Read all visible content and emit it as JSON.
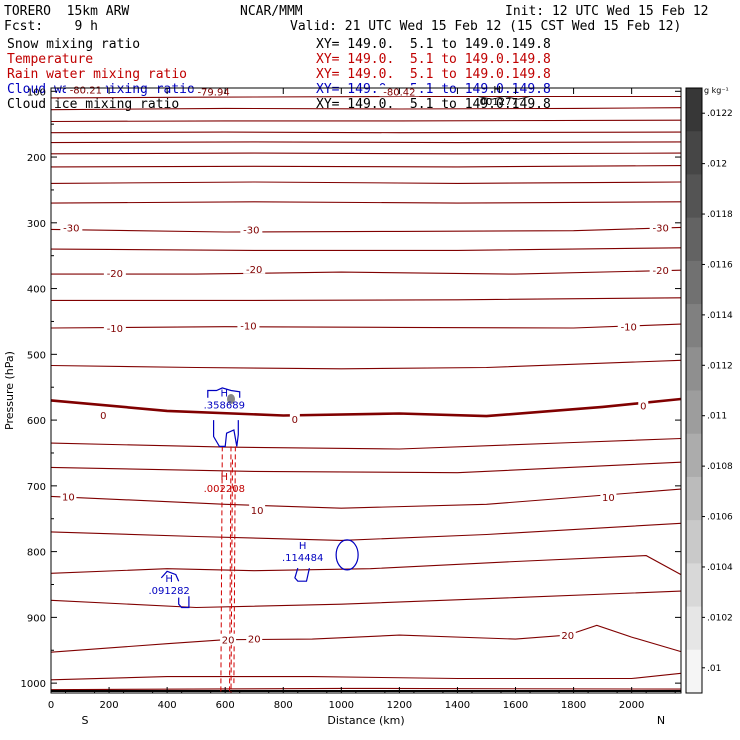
{
  "header": {
    "model": "TORERO  15km ARW",
    "center": "NCAR/MMM",
    "init": "Init: 12 UTC Wed 15 Feb 12",
    "fcst": "Fcst:    9 h",
    "valid": "Valid: 21 UTC Wed 15 Feb 12 (15 CST Wed 15 Feb 12)",
    "fields": [
      {
        "name": "Snow mixing ratio",
        "xy": "XY= 149.0.  5.1 to 149.0.149.8",
        "color": "#000000"
      },
      {
        "name": "Temperature",
        "xy": "XY= 149.0.  5.1 to 149.0.149.8",
        "color": "#c00000"
      },
      {
        "name": "Rain water mixing ratio",
        "xy": "XY= 149.0.  5.1 to 149.0.149.8",
        "color": "#c00000"
      },
      {
        "name": "Cloud water mixing ratio",
        "xy": "XY= 149.0.  5.1 to 149.0.149.8",
        "color": "#0000c0"
      },
      {
        "name": "Cloud ice mixing ratio",
        "xy": "XY= 149.0.  5.1 to 149.0.149.8",
        "color": "#000000"
      }
    ]
  },
  "chart_data": {
    "type": "contour",
    "xlabel": "Distance (km)",
    "ylabel": "Pressure (hPa)",
    "xlim": [
      0,
      2170
    ],
    "ylim": [
      1015,
      95
    ],
    "xticks": [
      0,
      200,
      400,
      600,
      800,
      1000,
      1200,
      1400,
      1600,
      1800,
      2000
    ],
    "yticks": [
      100,
      200,
      300,
      400,
      500,
      600,
      700,
      800,
      900,
      1000
    ],
    "direction_left": "S",
    "direction_right": "N",
    "temperature_contours": {
      "color": "#800000",
      "interval_c": 5,
      "labels": [
        {
          "text": "-80.21",
          "x": 120,
          "p": 97
        },
        {
          "text": "-79.94",
          "x": 560,
          "p": 100
        },
        {
          "text": "-80.42",
          "x": 1200,
          "p": 100
        },
        {
          "text": "-30",
          "x": 70,
          "p": 307
        },
        {
          "text": "-30",
          "x": 690,
          "p": 310
        },
        {
          "text": "-30",
          "x": 2100,
          "p": 307
        },
        {
          "text": "-20",
          "x": 220,
          "p": 376
        },
        {
          "text": "-20",
          "x": 700,
          "p": 370
        },
        {
          "text": "-20",
          "x": 2100,
          "p": 372
        },
        {
          "text": "-10",
          "x": 220,
          "p": 460
        },
        {
          "text": "-10",
          "x": 680,
          "p": 456
        },
        {
          "text": "-10",
          "x": 1990,
          "p": 458
        },
        {
          "text": "0",
          "x": 180,
          "p": 592
        },
        {
          "text": "0",
          "x": 840,
          "p": 598
        },
        {
          "text": "0",
          "x": 2040,
          "p": 578
        },
        {
          "text": "10",
          "x": 60,
          "p": 716
        },
        {
          "text": "10",
          "x": 710,
          "p": 737
        },
        {
          "text": "10",
          "x": 1920,
          "p": 717
        },
        {
          "text": "20",
          "x": 610,
          "p": 934
        },
        {
          "text": "20",
          "x": 700,
          "p": 932
        },
        {
          "text": "20",
          "x": 1780,
          "p": 927
        }
      ]
    },
    "rain_water_max": {
      "label": "H",
      "value": ".002208",
      "x": 590,
      "p": 705,
      "color": "#c00000"
    },
    "cloud_water_maxima": [
      {
        "label": "H",
        "value": ".358689",
        "x": 590,
        "p": 578,
        "color": "#0000c0"
      },
      {
        "label": "H",
        "value": ".114484",
        "x": 860,
        "p": 810,
        "color": "#0000c0"
      },
      {
        "label": "H",
        "value": ".091282",
        "x": 400,
        "p": 860,
        "color": "#0000c0"
      }
    ],
    "cloud_ice_max": {
      "label": "H",
      "value": ".001277",
      "x": 1530,
      "p": 116
    },
    "colorbar": {
      "unit": "g kg⁻¹",
      "ticks": [
        ".0122",
        ".012",
        ".0118",
        ".0116",
        ".0114",
        ".0112",
        ".011",
        ".0108",
        ".0106",
        ".0104",
        ".0102",
        ".01"
      ]
    }
  }
}
